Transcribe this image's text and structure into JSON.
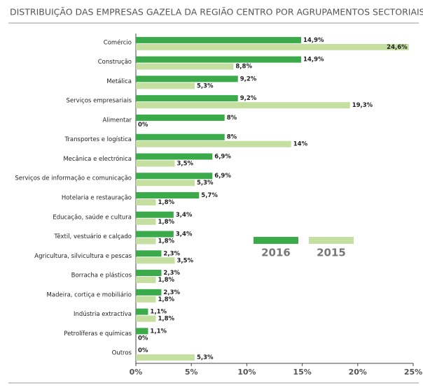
{
  "chart_data": {
    "type": "hbar",
    "title": "DISTRIBUIÇÃO DAS EMPRESAS GAZELA DA REGIÃO CENTRO POR AGRUPAMENTOS SECTORIAIS",
    "categories": [
      "Comércio",
      "Construção",
      "Metálica",
      "Serviços empresariais",
      "Alimentar",
      "Transportes e logística",
      "Mecânica e electrónica",
      "Serviços de informação e comunicação",
      "Hotelaria e restauração",
      "Educação, saúde e cultura",
      "Têxtil, vestuário e calçado",
      "Agricultura, silvicultura e pescas",
      "Borracha e plásticos",
      "Madeira, cortiça e mobiliário",
      "Indústria extractiva",
      "Petrolíferas e químicas",
      "Outros"
    ],
    "series": [
      {
        "name": "2016",
        "color": "#3aaa4a",
        "values": [
          14.9,
          14.9,
          9.2,
          9.2,
          8,
          8,
          6.9,
          6.9,
          5.7,
          3.4,
          3.4,
          2.3,
          2.3,
          2.3,
          1.1,
          1.1,
          0
        ],
        "value_labels": [
          "14,9%",
          "14,9%",
          "9,2%",
          "9,2%",
          "8%",
          "8%",
          "6,9%",
          "6,9%",
          "5,7%",
          "3,4%",
          "3,4%",
          "2,3%",
          "2,3%",
          "2,3%",
          "1,1%",
          "1,1%",
          "0%"
        ]
      },
      {
        "name": "2015",
        "color": "#c5dfa0",
        "values": [
          24.6,
          8.8,
          5.3,
          19.3,
          0,
          14,
          3.5,
          5.3,
          1.8,
          1.8,
          1.8,
          3.5,
          1.8,
          1.8,
          1.8,
          0,
          5.3
        ],
        "value_labels": [
          "24,6%",
          "8,8%",
          "5,3%",
          "19,3%",
          "0%",
          "14%",
          "3,5%",
          "5,3%",
          "1,8%",
          "1,8%",
          "1,8%",
          "3,5%",
          "1,8%",
          "1,8%",
          "1,8%",
          "0%",
          "5,3%"
        ]
      }
    ],
    "xlim": [
      0,
      25
    ],
    "xticks": [
      {
        "value": 0,
        "label": "0%"
      },
      {
        "value": 5,
        "label": "5%"
      },
      {
        "value": 10,
        "label": "10%"
      },
      {
        "value": 15,
        "label": "15%"
      },
      {
        "value": 20,
        "label": "20%"
      },
      {
        "value": 25,
        "label": "25%"
      }
    ]
  }
}
